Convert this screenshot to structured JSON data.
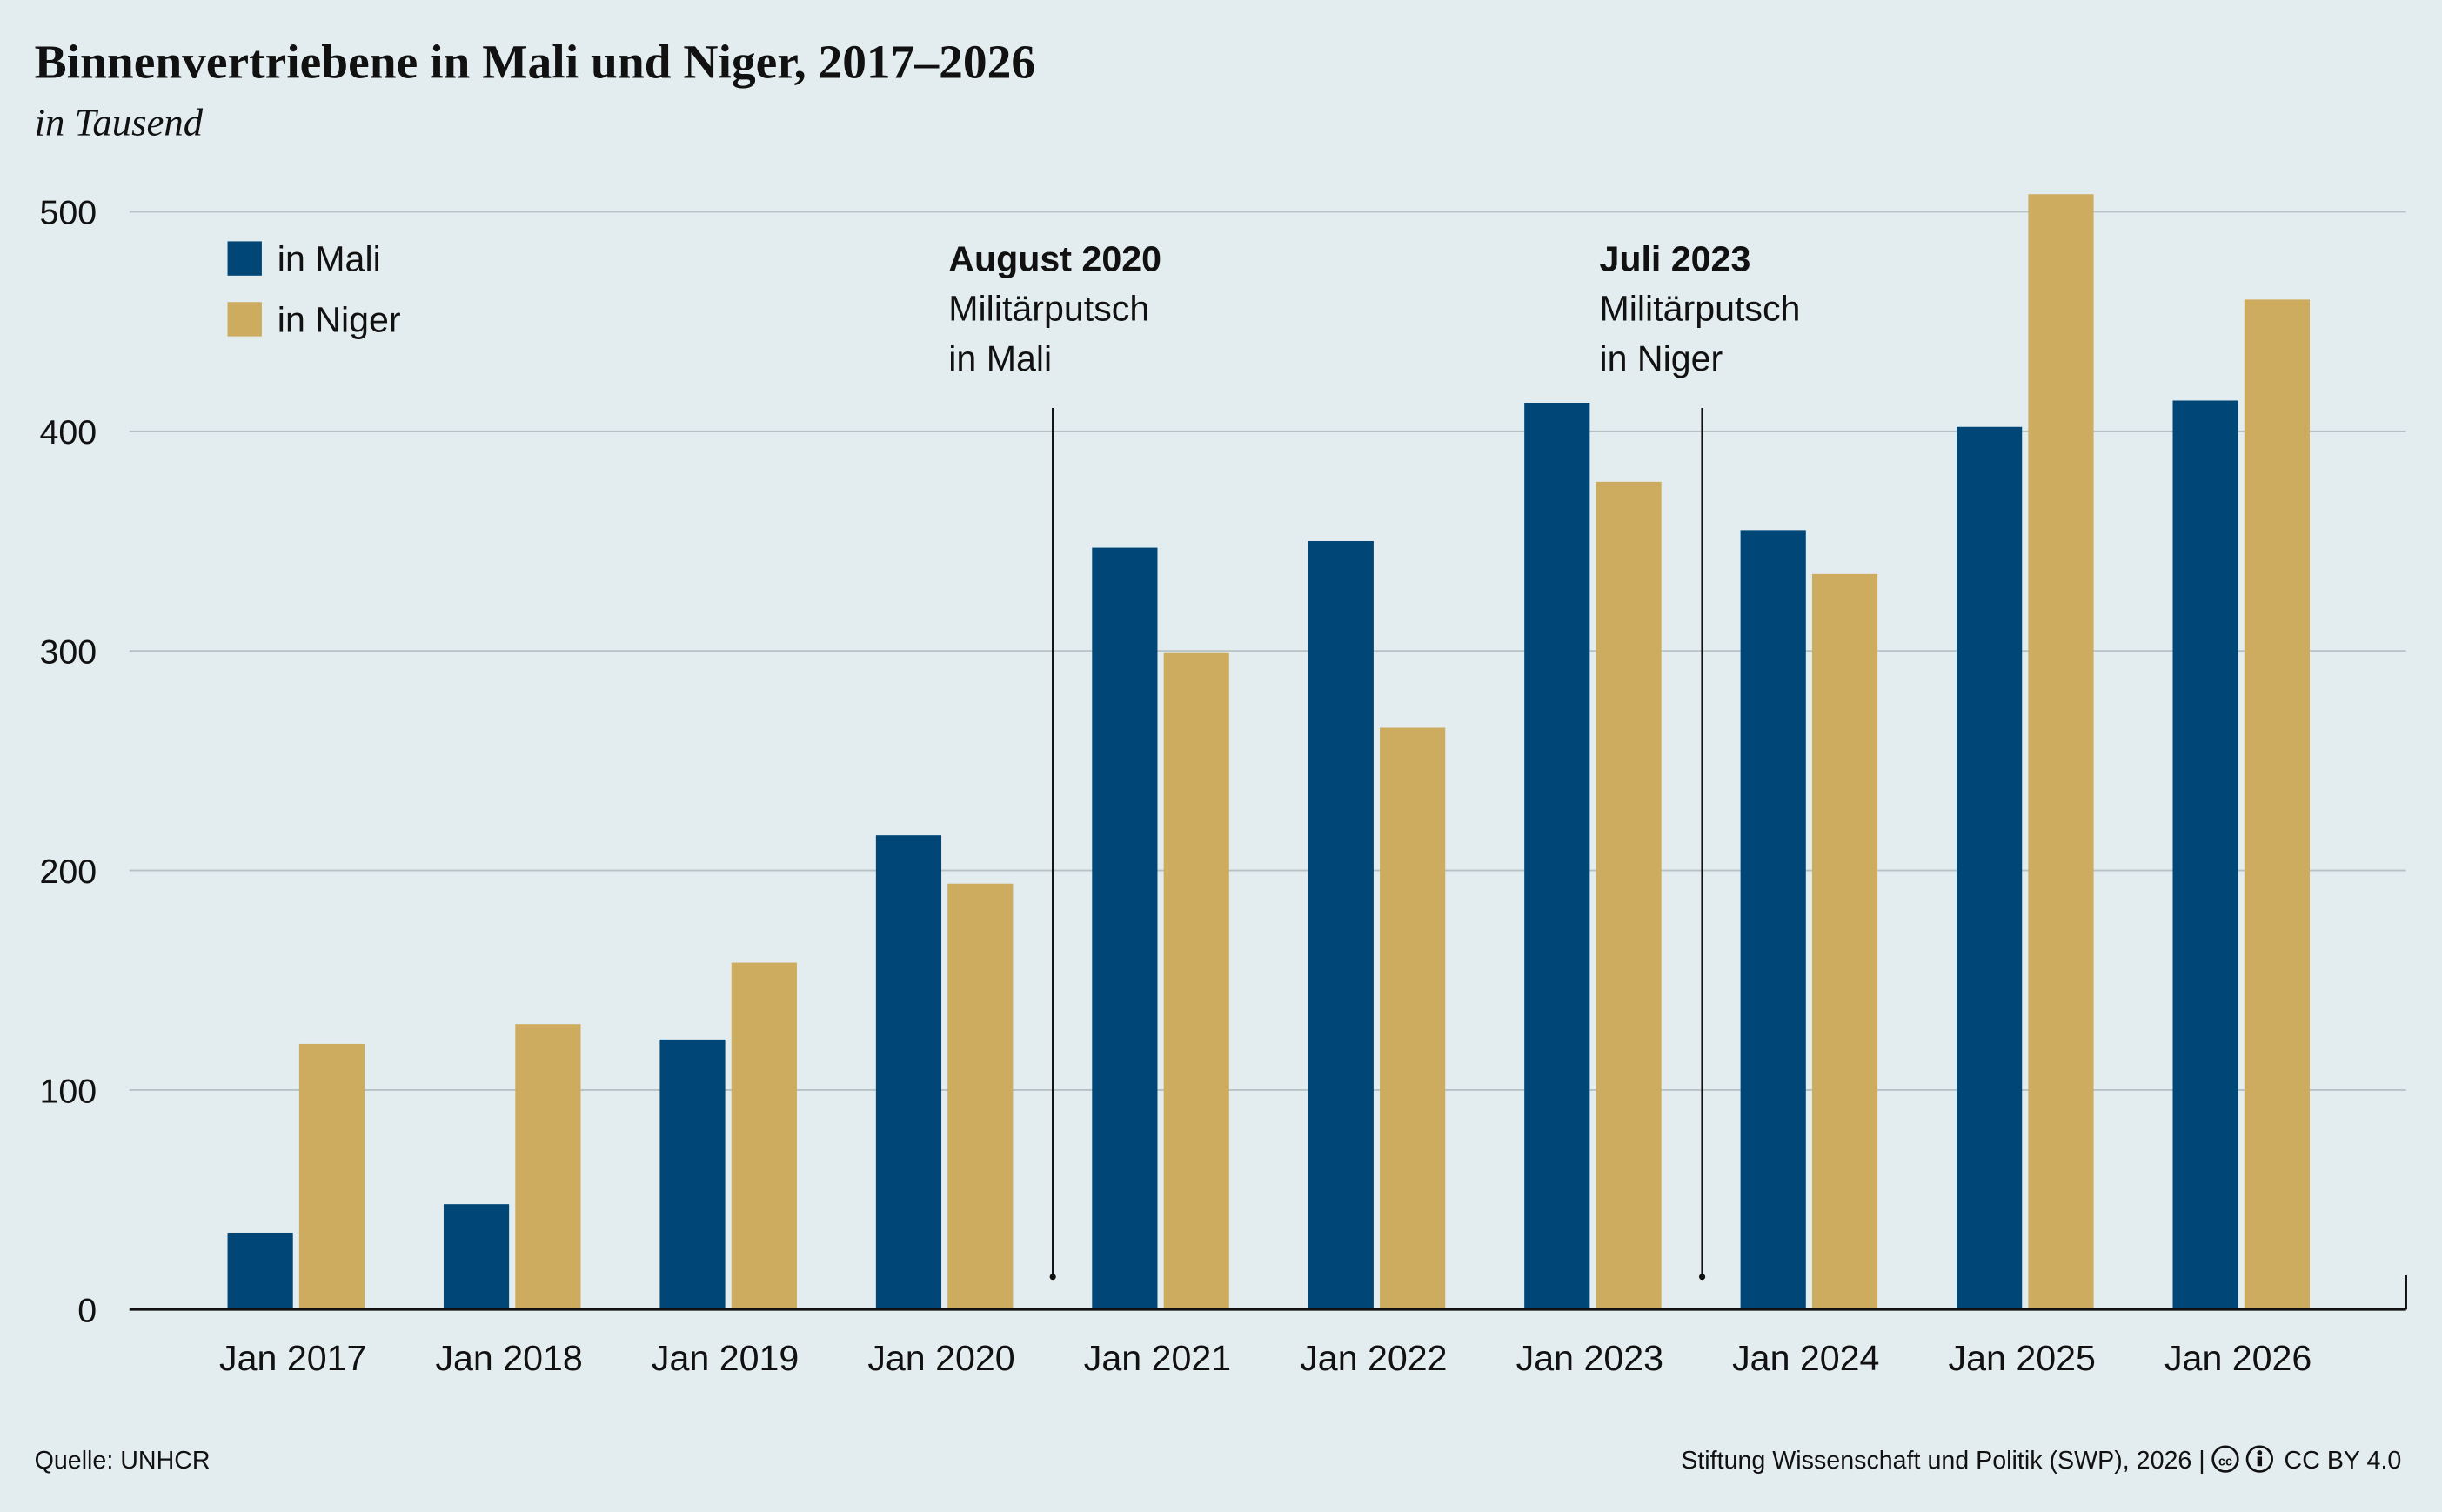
{
  "chart_data": {
    "type": "bar",
    "title": "Binnenvertriebene in Mali und Niger, 2017–2026",
    "subtitle": "in Tausend",
    "categories": [
      "Jan 2017",
      "Jan 2018",
      "Jan 2019",
      "Jan 2020",
      "Jan 2021",
      "Jan 2022",
      "Jan 2023",
      "Jan 2024",
      "Jan 2025",
      "Jan 2026"
    ],
    "series": [
      {
        "name": "in Mali",
        "color": "#004677",
        "values": [
          35,
          48,
          123,
          216,
          347,
          350,
          413,
          355,
          402,
          414
        ]
      },
      {
        "name": "in Niger",
        "color": "#cdab5f",
        "values": [
          121,
          130,
          158,
          194,
          299,
          265,
          377,
          335,
          508,
          460
        ]
      }
    ],
    "ylim": [
      0,
      500
    ],
    "yticks": [
      0,
      100,
      200,
      300,
      400,
      500
    ],
    "grid": true,
    "legend": "top-left",
    "annotations": [
      {
        "title": "August 2020",
        "lines": [
          "Militärputsch",
          "in Mali"
        ]
      },
      {
        "title": "Juli 2023",
        "lines": [
          "Militärputsch",
          "in Niger"
        ]
      }
    ],
    "source": "Quelle: UNHCR",
    "credit": "Stiftung Wissenschaft und Politik (SWP), 2026 |",
    "license": "CC BY 4.0"
  }
}
